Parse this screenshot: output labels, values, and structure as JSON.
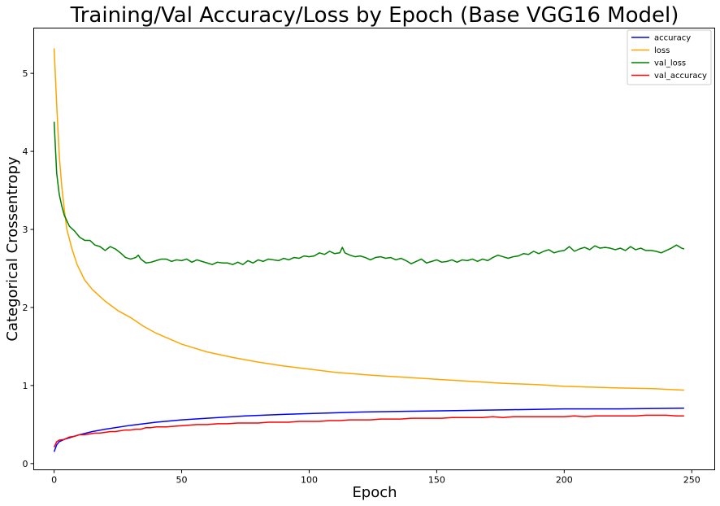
{
  "chart_data": {
    "type": "line",
    "title": "Training/Val Accuracy/Loss by Epoch (Base VGG16 Model)",
    "xlabel": "Epoch",
    "ylabel": "Categorical Crossentropy",
    "xlim": [
      -8,
      259
    ],
    "ylim": [
      -0.08,
      5.58
    ],
    "xticks": [
      0,
      50,
      100,
      150,
      200,
      250
    ],
    "yticks": [
      0,
      1,
      2,
      3,
      4,
      5
    ],
    "grid": false,
    "legend_position": "top-right",
    "series": [
      {
        "name": "accuracy",
        "color": "#0000ff",
        "points": [
          [
            0,
            0.15
          ],
          [
            1,
            0.24
          ],
          [
            2,
            0.28
          ],
          [
            4,
            0.31
          ],
          [
            6,
            0.33
          ],
          [
            10,
            0.37
          ],
          [
            15,
            0.41
          ],
          [
            20,
            0.44
          ],
          [
            30,
            0.49
          ],
          [
            40,
            0.53
          ],
          [
            50,
            0.56
          ],
          [
            60,
            0.58
          ],
          [
            75,
            0.61
          ],
          [
            90,
            0.63
          ],
          [
            100,
            0.64
          ],
          [
            120,
            0.66
          ],
          [
            140,
            0.67
          ],
          [
            160,
            0.68
          ],
          [
            180,
            0.69
          ],
          [
            200,
            0.7
          ],
          [
            220,
            0.7
          ],
          [
            247,
            0.71
          ]
        ]
      },
      {
        "name": "loss",
        "color": "#ffa500",
        "points": [
          [
            0,
            5.32
          ],
          [
            1,
            4.6
          ],
          [
            2,
            3.95
          ],
          [
            3,
            3.55
          ],
          [
            4,
            3.25
          ],
          [
            5,
            3.0
          ],
          [
            7,
            2.75
          ],
          [
            9,
            2.55
          ],
          [
            12,
            2.35
          ],
          [
            15,
            2.23
          ],
          [
            20,
            2.08
          ],
          [
            25,
            1.96
          ],
          [
            30,
            1.87
          ],
          [
            35,
            1.76
          ],
          [
            40,
            1.67
          ],
          [
            45,
            1.6
          ],
          [
            50,
            1.53
          ],
          [
            60,
            1.43
          ],
          [
            70,
            1.36
          ],
          [
            80,
            1.3
          ],
          [
            90,
            1.25
          ],
          [
            100,
            1.21
          ],
          [
            110,
            1.17
          ],
          [
            125,
            1.13
          ],
          [
            140,
            1.1
          ],
          [
            150,
            1.08
          ],
          [
            160,
            1.06
          ],
          [
            175,
            1.03
          ],
          [
            190,
            1.01
          ],
          [
            200,
            0.99
          ],
          [
            220,
            0.97
          ],
          [
            235,
            0.96
          ],
          [
            247,
            0.94
          ]
        ]
      },
      {
        "name": "val_loss",
        "color": "#008000",
        "points": [
          [
            0,
            4.38
          ],
          [
            1,
            3.72
          ],
          [
            2,
            3.45
          ],
          [
            3,
            3.3
          ],
          [
            4,
            3.18
          ],
          [
            6,
            3.04
          ],
          [
            8,
            2.98
          ],
          [
            10,
            2.9
          ],
          [
            12,
            2.86
          ],
          [
            14,
            2.86
          ],
          [
            16,
            2.8
          ],
          [
            18,
            2.78
          ],
          [
            20,
            2.73
          ],
          [
            22,
            2.78
          ],
          [
            24,
            2.75
          ],
          [
            26,
            2.7
          ],
          [
            28,
            2.64
          ],
          [
            30,
            2.62
          ],
          [
            32,
            2.64
          ],
          [
            33,
            2.67
          ],
          [
            34,
            2.62
          ],
          [
            36,
            2.57
          ],
          [
            38,
            2.58
          ],
          [
            40,
            2.6
          ],
          [
            42,
            2.62
          ],
          [
            44,
            2.62
          ],
          [
            46,
            2.59
          ],
          [
            48,
            2.61
          ],
          [
            50,
            2.6
          ],
          [
            52,
            2.62
          ],
          [
            54,
            2.58
          ],
          [
            56,
            2.61
          ],
          [
            58,
            2.59
          ],
          [
            60,
            2.57
          ],
          [
            62,
            2.55
          ],
          [
            64,
            2.58
          ],
          [
            66,
            2.57
          ],
          [
            68,
            2.57
          ],
          [
            70,
            2.55
          ],
          [
            72,
            2.58
          ],
          [
            74,
            2.55
          ],
          [
            76,
            2.6
          ],
          [
            78,
            2.57
          ],
          [
            80,
            2.61
          ],
          [
            82,
            2.59
          ],
          [
            84,
            2.62
          ],
          [
            86,
            2.61
          ],
          [
            88,
            2.6
          ],
          [
            90,
            2.63
          ],
          [
            92,
            2.61
          ],
          [
            94,
            2.64
          ],
          [
            96,
            2.63
          ],
          [
            98,
            2.66
          ],
          [
            100,
            2.65
          ],
          [
            102,
            2.66
          ],
          [
            104,
            2.7
          ],
          [
            106,
            2.68
          ],
          [
            108,
            2.72
          ],
          [
            110,
            2.69
          ],
          [
            112,
            2.7
          ],
          [
            113,
            2.77
          ],
          [
            114,
            2.7
          ],
          [
            116,
            2.67
          ],
          [
            118,
            2.65
          ],
          [
            120,
            2.66
          ],
          [
            122,
            2.64
          ],
          [
            124,
            2.61
          ],
          [
            126,
            2.64
          ],
          [
            128,
            2.65
          ],
          [
            130,
            2.63
          ],
          [
            132,
            2.64
          ],
          [
            134,
            2.61
          ],
          [
            136,
            2.63
          ],
          [
            138,
            2.6
          ],
          [
            140,
            2.56
          ],
          [
            142,
            2.59
          ],
          [
            144,
            2.62
          ],
          [
            146,
            2.57
          ],
          [
            148,
            2.59
          ],
          [
            150,
            2.61
          ],
          [
            152,
            2.58
          ],
          [
            154,
            2.59
          ],
          [
            156,
            2.61
          ],
          [
            158,
            2.58
          ],
          [
            160,
            2.61
          ],
          [
            162,
            2.6
          ],
          [
            164,
            2.62
          ],
          [
            166,
            2.59
          ],
          [
            168,
            2.62
          ],
          [
            170,
            2.6
          ],
          [
            172,
            2.64
          ],
          [
            174,
            2.67
          ],
          [
            176,
            2.65
          ],
          [
            178,
            2.63
          ],
          [
            180,
            2.65
          ],
          [
            182,
            2.66
          ],
          [
            184,
            2.69
          ],
          [
            186,
            2.68
          ],
          [
            188,
            2.72
          ],
          [
            190,
            2.69
          ],
          [
            192,
            2.72
          ],
          [
            194,
            2.74
          ],
          [
            196,
            2.7
          ],
          [
            198,
            2.72
          ],
          [
            200,
            2.73
          ],
          [
            202,
            2.78
          ],
          [
            204,
            2.72
          ],
          [
            206,
            2.75
          ],
          [
            208,
            2.77
          ],
          [
            210,
            2.74
          ],
          [
            212,
            2.79
          ],
          [
            214,
            2.76
          ],
          [
            216,
            2.77
          ],
          [
            218,
            2.76
          ],
          [
            220,
            2.74
          ],
          [
            222,
            2.76
          ],
          [
            224,
            2.73
          ],
          [
            226,
            2.78
          ],
          [
            228,
            2.74
          ],
          [
            230,
            2.76
          ],
          [
            232,
            2.73
          ],
          [
            234,
            2.73
          ],
          [
            236,
            2.72
          ],
          [
            238,
            2.7
          ],
          [
            240,
            2.73
          ],
          [
            242,
            2.76
          ],
          [
            244,
            2.8
          ],
          [
            246,
            2.76
          ],
          [
            247,
            2.75
          ]
        ]
      },
      {
        "name": "val_accuracy",
        "color": "#ff0000",
        "points": [
          [
            0,
            0.21
          ],
          [
            1,
            0.28
          ],
          [
            2,
            0.3
          ],
          [
            4,
            0.31
          ],
          [
            6,
            0.34
          ],
          [
            8,
            0.35
          ],
          [
            10,
            0.37
          ],
          [
            12,
            0.37
          ],
          [
            14,
            0.38
          ],
          [
            16,
            0.39
          ],
          [
            18,
            0.39
          ],
          [
            20,
            0.4
          ],
          [
            22,
            0.41
          ],
          [
            24,
            0.41
          ],
          [
            26,
            0.42
          ],
          [
            28,
            0.43
          ],
          [
            30,
            0.43
          ],
          [
            32,
            0.44
          ],
          [
            34,
            0.44
          ],
          [
            36,
            0.46
          ],
          [
            38,
            0.46
          ],
          [
            40,
            0.47
          ],
          [
            44,
            0.47
          ],
          [
            48,
            0.48
          ],
          [
            52,
            0.49
          ],
          [
            56,
            0.5
          ],
          [
            60,
            0.5
          ],
          [
            64,
            0.51
          ],
          [
            68,
            0.51
          ],
          [
            72,
            0.52
          ],
          [
            76,
            0.52
          ],
          [
            80,
            0.52
          ],
          [
            84,
            0.53
          ],
          [
            88,
            0.53
          ],
          [
            92,
            0.53
          ],
          [
            96,
            0.54
          ],
          [
            100,
            0.54
          ],
          [
            104,
            0.54
          ],
          [
            108,
            0.55
          ],
          [
            112,
            0.55
          ],
          [
            116,
            0.56
          ],
          [
            120,
            0.56
          ],
          [
            124,
            0.56
          ],
          [
            128,
            0.57
          ],
          [
            132,
            0.57
          ],
          [
            136,
            0.57
          ],
          [
            140,
            0.58
          ],
          [
            144,
            0.58
          ],
          [
            148,
            0.58
          ],
          [
            152,
            0.58
          ],
          [
            156,
            0.59
          ],
          [
            160,
            0.59
          ],
          [
            164,
            0.59
          ],
          [
            168,
            0.59
          ],
          [
            172,
            0.6
          ],
          [
            176,
            0.59
          ],
          [
            180,
            0.6
          ],
          [
            184,
            0.6
          ],
          [
            188,
            0.6
          ],
          [
            192,
            0.6
          ],
          [
            196,
            0.6
          ],
          [
            200,
            0.6
          ],
          [
            204,
            0.61
          ],
          [
            208,
            0.6
          ],
          [
            212,
            0.61
          ],
          [
            216,
            0.61
          ],
          [
            220,
            0.61
          ],
          [
            224,
            0.61
          ],
          [
            228,
            0.61
          ],
          [
            232,
            0.62
          ],
          [
            236,
            0.62
          ],
          [
            240,
            0.62
          ],
          [
            244,
            0.61
          ],
          [
            247,
            0.61
          ]
        ]
      }
    ],
    "legend_order": [
      "accuracy",
      "loss",
      "val_loss",
      "val_accuracy"
    ]
  }
}
